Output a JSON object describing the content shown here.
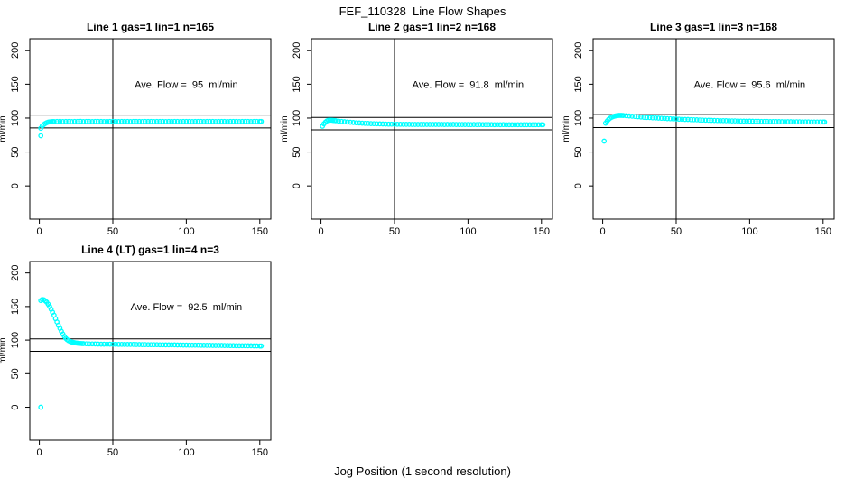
{
  "title": "FEF_110328  Line Flow Shapes",
  "xlabel": "Jog Position (1 second resolution)",
  "colors": {
    "marker": "#00FFFF",
    "axis": "#000000",
    "background": "#FFFFFF",
    "text": "#000000"
  },
  "chart_data": [
    {
      "type": "scatter",
      "title": "Line 1 gas=1 lin=1 n=165",
      "annotation": "Ave. Flow =  95  ml/min",
      "ave_flow_ml_min": 95,
      "n": 165,
      "gas": 1,
      "lin": 1,
      "hlines": [
        104.5,
        85.5
      ],
      "vline_x": 50,
      "xticks": [
        0,
        50,
        100,
        150
      ],
      "yticks": [
        0,
        50,
        100,
        150,
        200
      ],
      "ylabel": "ml/min",
      "xlim": [
        -6.5,
        157.5
      ],
      "ylim": [
        -49,
        217
      ],
      "grid": false,
      "points": [
        [
          1,
          74
        ],
        [
          1,
          85
        ],
        [
          2,
          88.5
        ],
        [
          3,
          90.5
        ],
        [
          4,
          92
        ],
        [
          5,
          93.2
        ],
        [
          6,
          94
        ],
        [
          7,
          94.4
        ],
        [
          8,
          94.6
        ],
        [
          9,
          94.8
        ],
        [
          10,
          94.9
        ],
        [
          12,
          95
        ],
        [
          14,
          95.2
        ],
        [
          16,
          94.9
        ],
        [
          18,
          95.1
        ],
        [
          20,
          95
        ],
        [
          22,
          94.8
        ],
        [
          24,
          95.1
        ],
        [
          26,
          95
        ],
        [
          28,
          95.2
        ],
        [
          30,
          94.9
        ],
        [
          32,
          95
        ],
        [
          34,
          95.1
        ],
        [
          36,
          94.9
        ],
        [
          38,
          95
        ],
        [
          40,
          95.1
        ],
        [
          42,
          95
        ],
        [
          44,
          94.9
        ],
        [
          46,
          95.1
        ],
        [
          48,
          95
        ],
        [
          50,
          95
        ],
        [
          52,
          95.1
        ],
        [
          54,
          94.9
        ],
        [
          56,
          95
        ],
        [
          58,
          95.1
        ],
        [
          60,
          95
        ],
        [
          62,
          94.9
        ],
        [
          64,
          95
        ],
        [
          66,
          95.1
        ],
        [
          68,
          95
        ],
        [
          70,
          94.9
        ],
        [
          72,
          95.1
        ],
        [
          74,
          95
        ],
        [
          76,
          95
        ],
        [
          78,
          94.9
        ],
        [
          80,
          95.1
        ],
        [
          82,
          95
        ],
        [
          84,
          95
        ],
        [
          86,
          94.9
        ],
        [
          88,
          95.1
        ],
        [
          90,
          95
        ],
        [
          92,
          95
        ],
        [
          94,
          95.1
        ],
        [
          96,
          94.9
        ],
        [
          98,
          95
        ],
        [
          100,
          95
        ],
        [
          102,
          95.1
        ],
        [
          104,
          94.9
        ],
        [
          106,
          95
        ],
        [
          108,
          95.1
        ],
        [
          110,
          95
        ],
        [
          112,
          94.9
        ],
        [
          114,
          95
        ],
        [
          116,
          95.1
        ],
        [
          118,
          95
        ],
        [
          120,
          94.9
        ],
        [
          122,
          95
        ],
        [
          124,
          95.1
        ],
        [
          126,
          95
        ],
        [
          128,
          94.9
        ],
        [
          130,
          95
        ],
        [
          132,
          95
        ],
        [
          134,
          95.1
        ],
        [
          136,
          94.9
        ],
        [
          138,
          95
        ],
        [
          140,
          95
        ],
        [
          142,
          95.1
        ],
        [
          144,
          94.9
        ],
        [
          146,
          95
        ],
        [
          148,
          95
        ],
        [
          150,
          95
        ],
        [
          151,
          95
        ]
      ]
    },
    {
      "type": "scatter",
      "title": "Line 2 gas=1 lin=2 n=168",
      "annotation": "Ave. Flow =  91.8  ml/min",
      "ave_flow_ml_min": 91.8,
      "n": 168,
      "gas": 1,
      "lin": 2,
      "hlines": [
        100.98,
        82.62
      ],
      "vline_x": 50,
      "xticks": [
        0,
        50,
        100,
        150
      ],
      "yticks": [
        0,
        50,
        100,
        150,
        200
      ],
      "ylabel": "ml/min",
      "xlim": [
        -6.5,
        157.5
      ],
      "ylim": [
        -49,
        217
      ],
      "grid": false,
      "points": [
        [
          1,
          88
        ],
        [
          2,
          91.5
        ],
        [
          3,
          94
        ],
        [
          4,
          95.8
        ],
        [
          5,
          96.7
        ],
        [
          6,
          97
        ],
        [
          7,
          96.9
        ],
        [
          8,
          96.7
        ],
        [
          9,
          96.4
        ],
        [
          10,
          96.1
        ],
        [
          12,
          95.6
        ],
        [
          14,
          95.1
        ],
        [
          16,
          94.6
        ],
        [
          18,
          94.2
        ],
        [
          20,
          93.8
        ],
        [
          22,
          93.4
        ],
        [
          24,
          93.1
        ],
        [
          26,
          92.8
        ],
        [
          28,
          92.5
        ],
        [
          30,
          92.3
        ],
        [
          32,
          92.1
        ],
        [
          34,
          91.9
        ],
        [
          36,
          91.7
        ],
        [
          38,
          91.6
        ],
        [
          40,
          91.4
        ],
        [
          42,
          91.3
        ],
        [
          44,
          91.2
        ],
        [
          46,
          91.1
        ],
        [
          48,
          91
        ],
        [
          50,
          91
        ],
        [
          52,
          90.9
        ],
        [
          54,
          90.9
        ],
        [
          56,
          90.8
        ],
        [
          58,
          90.8
        ],
        [
          60,
          90.8
        ],
        [
          62,
          90.7
        ],
        [
          64,
          90.7
        ],
        [
          66,
          90.7
        ],
        [
          68,
          90.6
        ],
        [
          70,
          90.7
        ],
        [
          72,
          90.6
        ],
        [
          74,
          90.7
        ],
        [
          76,
          90.6
        ],
        [
          78,
          90.6
        ],
        [
          80,
          90.6
        ],
        [
          82,
          90.6
        ],
        [
          84,
          90.5
        ],
        [
          86,
          90.6
        ],
        [
          88,
          90.5
        ],
        [
          90,
          90.6
        ],
        [
          92,
          90.5
        ],
        [
          94,
          90.5
        ],
        [
          96,
          90.5
        ],
        [
          98,
          90.5
        ],
        [
          100,
          90.5
        ],
        [
          102,
          90.4
        ],
        [
          104,
          90.5
        ],
        [
          106,
          90.4
        ],
        [
          108,
          90.5
        ],
        [
          110,
          90.4
        ],
        [
          112,
          90.4
        ],
        [
          114,
          90.4
        ],
        [
          116,
          90.4
        ],
        [
          118,
          90.3
        ],
        [
          120,
          90.4
        ],
        [
          122,
          90.3
        ],
        [
          124,
          90.4
        ],
        [
          126,
          90.3
        ],
        [
          128,
          90.3
        ],
        [
          130,
          90.3
        ],
        [
          132,
          90.3
        ],
        [
          134,
          90.2
        ],
        [
          136,
          90.3
        ],
        [
          138,
          90.2
        ],
        [
          140,
          90.3
        ],
        [
          142,
          90.2
        ],
        [
          144,
          90.2
        ],
        [
          146,
          90.2
        ],
        [
          148,
          90.2
        ],
        [
          150,
          90.2
        ],
        [
          151,
          90.2
        ]
      ]
    },
    {
      "type": "scatter",
      "title": "Line 3 gas=1 lin=3 n=168",
      "annotation": "Ave. Flow =  95.6  ml/min",
      "ave_flow_ml_min": 95.6,
      "n": 168,
      "gas": 1,
      "lin": 3,
      "hlines": [
        105.16,
        86.04
      ],
      "vline_x": 50,
      "xticks": [
        0,
        50,
        100,
        150
      ],
      "yticks": [
        0,
        50,
        100,
        150,
        200
      ],
      "ylabel": "ml/min",
      "xlim": [
        -6.5,
        157.5
      ],
      "ylim": [
        -49,
        217
      ],
      "grid": false,
      "points": [
        [
          1,
          66
        ],
        [
          2,
          92.5
        ],
        [
          3,
          95.5
        ],
        [
          4,
          98
        ],
        [
          5,
          99.8
        ],
        [
          6,
          101.2
        ],
        [
          7,
          102.1
        ],
        [
          8,
          102.8
        ],
        [
          9,
          103.3
        ],
        [
          10,
          103.7
        ],
        [
          11,
          103.9
        ],
        [
          12,
          104
        ],
        [
          13,
          103.9
        ],
        [
          14,
          103.8
        ],
        [
          16,
          103.5
        ],
        [
          18,
          103.2
        ],
        [
          20,
          102.8
        ],
        [
          22,
          102.4
        ],
        [
          24,
          102
        ],
        [
          26,
          101.6
        ],
        [
          28,
          101.2
        ],
        [
          30,
          100.9
        ],
        [
          32,
          100.7
        ],
        [
          34,
          100.4
        ],
        [
          36,
          100.2
        ],
        [
          38,
          99.9
        ],
        [
          40,
          99.7
        ],
        [
          42,
          99.5
        ],
        [
          44,
          99.2
        ],
        [
          46,
          99
        ],
        [
          48,
          98.8
        ],
        [
          50,
          98.6
        ],
        [
          52,
          98.4
        ],
        [
          54,
          98.2
        ],
        [
          56,
          98
        ],
        [
          58,
          97.9
        ],
        [
          60,
          97.7
        ],
        [
          62,
          97.5
        ],
        [
          64,
          97.4
        ],
        [
          66,
          97.2
        ],
        [
          68,
          97.1
        ],
        [
          70,
          96.9
        ],
        [
          72,
          96.8
        ],
        [
          74,
          96.7
        ],
        [
          76,
          96.5
        ],
        [
          78,
          96.4
        ],
        [
          80,
          96.3
        ],
        [
          82,
          96.2
        ],
        [
          84,
          96.1
        ],
        [
          86,
          96
        ],
        [
          88,
          95.9
        ],
        [
          90,
          95.8
        ],
        [
          92,
          95.7
        ],
        [
          94,
          95.6
        ],
        [
          96,
          95.5
        ],
        [
          98,
          95.4
        ],
        [
          100,
          95.4
        ],
        [
          102,
          95.3
        ],
        [
          104,
          95.2
        ],
        [
          106,
          95.2
        ],
        [
          108,
          95.1
        ],
        [
          110,
          95
        ],
        [
          112,
          95
        ],
        [
          114,
          94.9
        ],
        [
          116,
          94.9
        ],
        [
          118,
          94.8
        ],
        [
          120,
          94.8
        ],
        [
          122,
          94.7
        ],
        [
          124,
          94.7
        ],
        [
          126,
          94.6
        ],
        [
          128,
          94.6
        ],
        [
          130,
          94.5
        ],
        [
          132,
          94.5
        ],
        [
          134,
          94.5
        ],
        [
          136,
          94.4
        ],
        [
          138,
          94.4
        ],
        [
          140,
          94.4
        ],
        [
          142,
          94.3
        ],
        [
          144,
          94.3
        ],
        [
          146,
          94.3
        ],
        [
          148,
          94.2
        ],
        [
          150,
          94.2
        ],
        [
          151,
          94.2
        ]
      ]
    },
    {
      "type": "scatter",
      "title": "Line 4 (LT) gas=1 lin=4 n=3",
      "annotation": "Ave. Flow =  92.5  ml/min",
      "ave_flow_ml_min": 92.5,
      "n": 3,
      "gas": 1,
      "lin": 4,
      "hlines": [
        101.75,
        83.25
      ],
      "vline_x": 50,
      "xticks": [
        0,
        50,
        100,
        150
      ],
      "yticks": [
        0,
        50,
        100,
        150,
        200
      ],
      "ylabel": "ml/min",
      "xlim": [
        -6.5,
        157.5
      ],
      "ylim": [
        -49,
        217
      ],
      "grid": false,
      "points": [
        [
          1,
          0
        ],
        [
          1,
          159
        ],
        [
          2,
          160.5
        ],
        [
          3,
          160
        ],
        [
          4,
          158.5
        ],
        [
          5,
          156.5
        ],
        [
          6,
          153.5
        ],
        [
          7,
          150
        ],
        [
          8,
          146
        ],
        [
          9,
          141.5
        ],
        [
          10,
          137
        ],
        [
          11,
          132
        ],
        [
          12,
          127
        ],
        [
          13,
          122
        ],
        [
          14,
          117.5
        ],
        [
          15,
          113
        ],
        [
          16,
          109
        ],
        [
          17,
          105.5
        ],
        [
          18,
          102.5
        ],
        [
          19,
          100.5
        ],
        [
          20,
          99
        ],
        [
          21,
          98
        ],
        [
          22,
          97.2
        ],
        [
          23,
          96.6
        ],
        [
          24,
          96.1
        ],
        [
          25,
          95.7
        ],
        [
          26,
          95.4
        ],
        [
          27,
          95.2
        ],
        [
          28,
          95
        ],
        [
          29,
          94.8
        ],
        [
          30,
          94.7
        ],
        [
          32,
          94.5
        ],
        [
          34,
          94.4
        ],
        [
          36,
          94.3
        ],
        [
          38,
          94.2
        ],
        [
          40,
          94.1
        ],
        [
          42,
          94
        ],
        [
          44,
          94
        ],
        [
          46,
          93.9
        ],
        [
          48,
          93.9
        ],
        [
          50,
          93.8
        ],
        [
          52,
          93.8
        ],
        [
          54,
          93.7
        ],
        [
          56,
          93.7
        ],
        [
          58,
          93.6
        ],
        [
          60,
          93.6
        ],
        [
          62,
          93.5
        ],
        [
          64,
          93.5
        ],
        [
          66,
          93.4
        ],
        [
          68,
          93.4
        ],
        [
          70,
          93.3
        ],
        [
          72,
          93.3
        ],
        [
          74,
          93.2
        ],
        [
          76,
          93.2
        ],
        [
          78,
          93.1
        ],
        [
          80,
          93.1
        ],
        [
          82,
          93
        ],
        [
          84,
          93
        ],
        [
          86,
          92.9
        ],
        [
          88,
          92.9
        ],
        [
          90,
          92.8
        ],
        [
          92,
          92.8
        ],
        [
          94,
          92.7
        ],
        [
          96,
          92.7
        ],
        [
          98,
          92.6
        ],
        [
          100,
          92.6
        ],
        [
          102,
          92.5
        ],
        [
          104,
          92.5
        ],
        [
          106,
          92.4
        ],
        [
          108,
          92.4
        ],
        [
          110,
          92.3
        ],
        [
          112,
          92.3
        ],
        [
          114,
          92.2
        ],
        [
          116,
          92.2
        ],
        [
          118,
          92.1
        ],
        [
          120,
          92.1
        ],
        [
          122,
          92
        ],
        [
          124,
          92
        ],
        [
          126,
          91.9
        ],
        [
          128,
          91.9
        ],
        [
          130,
          91.8
        ],
        [
          132,
          91.8
        ],
        [
          134,
          91.7
        ],
        [
          136,
          91.7
        ],
        [
          138,
          91.6
        ],
        [
          140,
          91.6
        ],
        [
          142,
          91.5
        ],
        [
          144,
          91.5
        ],
        [
          146,
          91.4
        ],
        [
          148,
          91.4
        ],
        [
          150,
          91.3
        ],
        [
          151,
          91.3
        ]
      ]
    }
  ]
}
